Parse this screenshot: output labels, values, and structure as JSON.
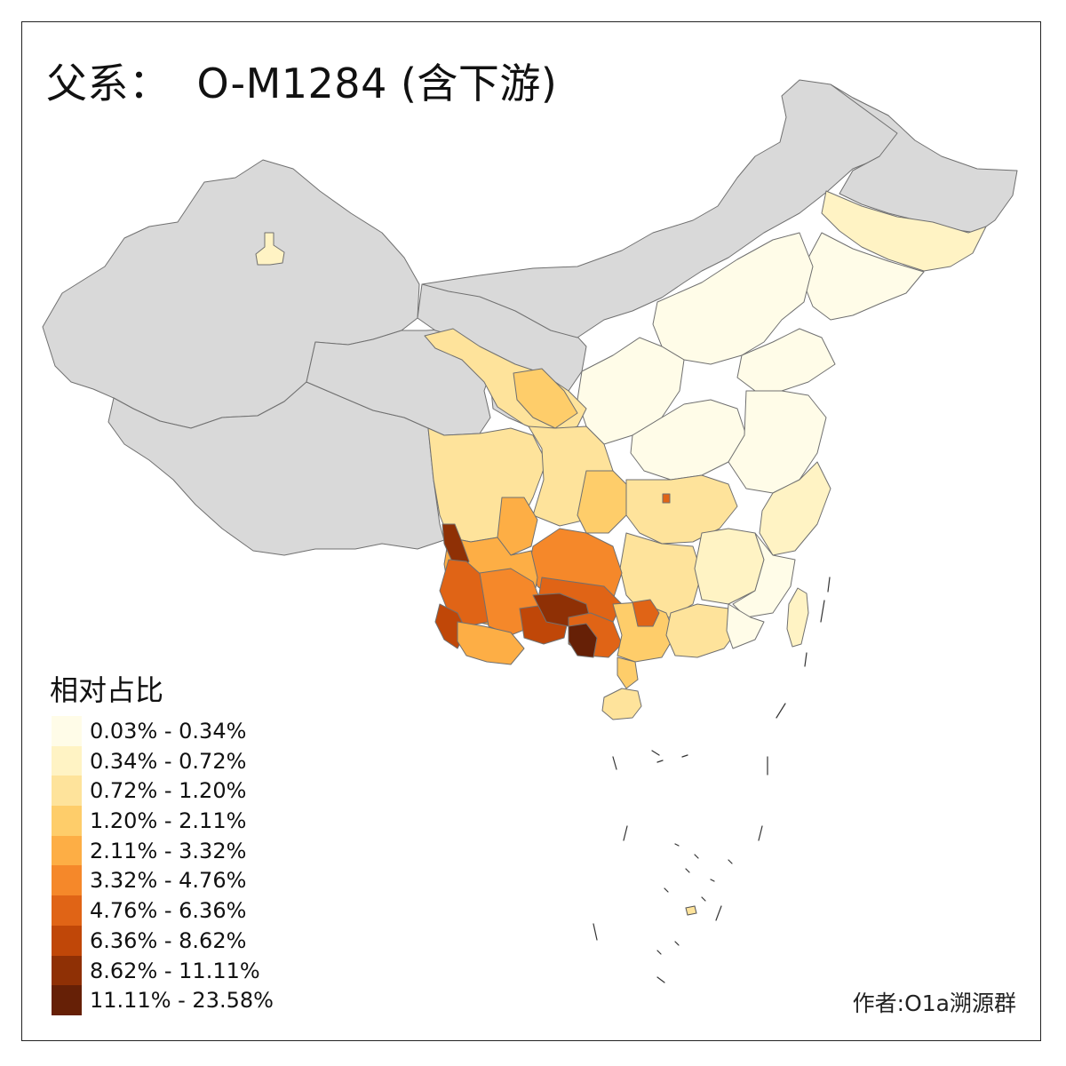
{
  "title": {
    "prefix": "父系：",
    "code": "O-M1284 (含下游)"
  },
  "legend": {
    "title": "相对占比",
    "items": [
      {
        "label": "0.03% - 0.34%",
        "color": "#fffce8"
      },
      {
        "label": "0.34% - 0.72%",
        "color": "#fff3c4"
      },
      {
        "label": "0.72% - 1.20%",
        "color": "#fee39b"
      },
      {
        "label": "1.20% - 2.11%",
        "color": "#fecd6a"
      },
      {
        "label": "2.11% - 3.32%",
        "color": "#fdae45"
      },
      {
        "label": "3.32% - 4.76%",
        "color": "#f5882a"
      },
      {
        "label": "4.76% - 6.36%",
        "color": "#e06416"
      },
      {
        "label": "6.36% - 8.62%",
        "color": "#c04708"
      },
      {
        "label": "8.62% - 11.11%",
        "color": "#8f3005"
      },
      {
        "label": "11.11% - 23.58%",
        "color": "#662006"
      }
    ]
  },
  "colors": {
    "no_data": "#d9d9d9",
    "border": "#707070",
    "frame": "#222222"
  },
  "credit": "作者:O1a溯源群"
}
